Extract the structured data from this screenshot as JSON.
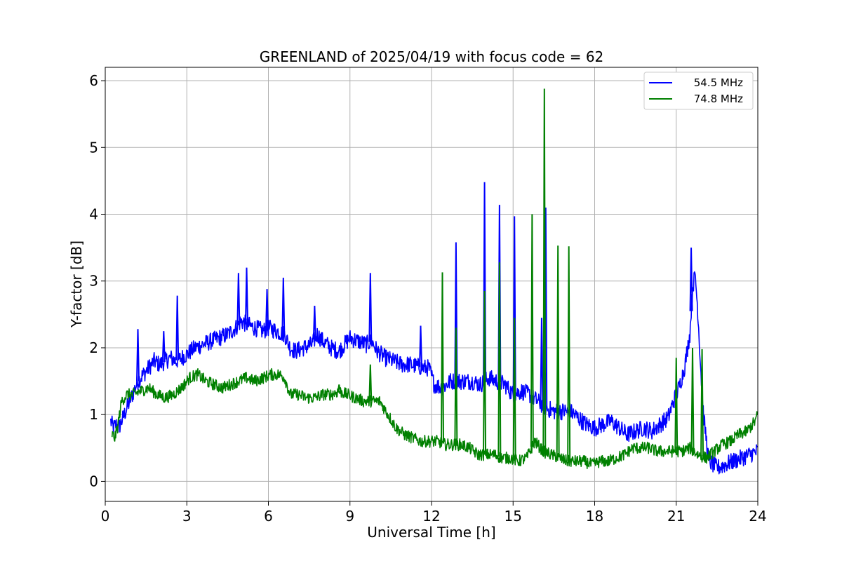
{
  "chart_data": {
    "type": "line",
    "title": "GREENLAND of 2025/04/19 with focus code = 62",
    "xlabel": "Universal Time [h]",
    "ylabel": "Y-factor [dB]",
    "xlim": [
      0,
      24
    ],
    "ylim": [
      -0.3,
      6.2
    ],
    "xticks": [
      0,
      3,
      6,
      9,
      12,
      15,
      18,
      21,
      24
    ],
    "xtick_labels": [
      "0",
      "3",
      "6",
      "9",
      "12",
      "15",
      "18",
      "21",
      "24"
    ],
    "yticks": [
      0,
      1,
      2,
      3,
      4,
      5,
      6
    ],
    "ytick_labels": [
      "0",
      "1",
      "2",
      "3",
      "4",
      "5",
      "6"
    ],
    "grid": true,
    "legend_position": "top-right",
    "series": [
      {
        "name": "54.5 MHz",
        "color": "#0000ff",
        "noise": 0.13,
        "x": [
          0.2,
          0.3,
          0.4,
          0.5,
          0.6,
          0.7,
          0.8,
          0.9,
          1.0,
          1.2,
          1.4,
          1.6,
          1.8,
          2.0,
          2.2,
          2.4,
          2.6,
          2.8,
          3.0,
          3.3,
          3.6,
          3.9,
          4.2,
          4.5,
          4.8,
          5.0,
          5.2,
          5.5,
          5.8,
          6.0,
          6.3,
          6.6,
          6.8,
          7.0,
          7.3,
          7.6,
          7.8,
          8.0,
          8.3,
          8.6,
          8.8,
          9.0,
          9.3,
          9.6,
          9.8,
          10.0,
          10.3,
          10.6,
          10.9,
          11.2,
          11.5,
          11.7,
          11.9,
          12.1,
          12.4,
          12.7,
          13.0,
          13.5,
          13.8,
          14.1,
          14.4,
          14.7,
          15.0,
          15.3,
          15.6,
          15.9,
          16.2,
          16.5,
          16.8,
          17.1,
          17.4,
          17.7,
          18.0,
          18.3,
          18.6,
          18.9,
          19.2,
          19.5,
          19.8,
          20.1,
          20.4,
          20.7,
          20.9,
          21.1,
          21.3,
          21.5,
          21.6,
          21.7,
          21.8,
          21.9,
          22.0,
          22.2,
          22.5,
          22.8,
          23.1,
          23.4,
          23.7,
          24.0
        ],
        "values": [
          0.9,
          0.8,
          0.85,
          0.8,
          0.9,
          1.0,
          1.1,
          1.2,
          1.3,
          1.5,
          1.6,
          1.7,
          1.8,
          1.75,
          1.8,
          1.85,
          1.8,
          1.85,
          1.9,
          2.0,
          2.05,
          2.1,
          2.15,
          2.2,
          2.3,
          2.4,
          2.35,
          2.3,
          2.25,
          2.3,
          2.25,
          2.2,
          2.0,
          1.95,
          2.0,
          2.05,
          2.2,
          2.1,
          2.0,
          1.95,
          2.05,
          2.15,
          2.1,
          2.05,
          2.1,
          1.95,
          1.85,
          1.8,
          1.75,
          1.75,
          1.72,
          1.7,
          1.7,
          1.45,
          1.4,
          1.5,
          1.5,
          1.5,
          1.45,
          1.55,
          1.5,
          1.45,
          1.3,
          1.35,
          1.3,
          1.2,
          1.1,
          1.05,
          1.05,
          1.05,
          0.95,
          0.85,
          0.8,
          0.85,
          0.9,
          0.8,
          0.7,
          0.75,
          0.8,
          0.75,
          0.85,
          0.95,
          1.2,
          1.4,
          1.7,
          2.2,
          2.9,
          3.1,
          2.5,
          1.7,
          1.0,
          0.3,
          0.2,
          0.25,
          0.3,
          0.35,
          0.4,
          0.45
        ],
        "spikes": [
          [
            1.2,
            2.28
          ],
          [
            2.15,
            2.25
          ],
          [
            2.65,
            2.78
          ],
          [
            4.9,
            3.12
          ],
          [
            5.2,
            3.2
          ],
          [
            5.95,
            2.88
          ],
          [
            6.55,
            3.05
          ],
          [
            7.7,
            2.63
          ],
          [
            9.75,
            3.12
          ],
          [
            11.6,
            2.33
          ],
          [
            12.9,
            3.58
          ],
          [
            13.95,
            4.48
          ],
          [
            14.5,
            4.14
          ],
          [
            15.05,
            3.97
          ],
          [
            16.05,
            2.45
          ],
          [
            16.2,
            4.1
          ],
          [
            21.55,
            3.5
          ]
        ]
      },
      {
        "name": "74.8 MHz",
        "color": "#008000",
        "noise": 0.09,
        "x": [
          0.25,
          0.35,
          0.45,
          0.6,
          0.8,
          1.0,
          1.3,
          1.6,
          1.9,
          2.2,
          2.5,
          2.8,
          3.1,
          3.4,
          3.7,
          4.0,
          4.3,
          4.6,
          4.9,
          5.2,
          5.5,
          5.8,
          6.1,
          6.4,
          6.6,
          6.8,
          7.1,
          7.4,
          7.7,
          8.0,
          8.3,
          8.6,
          8.9,
          9.2,
          9.5,
          9.8,
          10.1,
          10.4,
          10.7,
          11.0,
          11.3,
          11.6,
          11.9,
          12.2,
          12.5,
          12.8,
          13.1,
          13.4,
          13.7,
          14.0,
          14.3,
          14.6,
          14.9,
          15.2,
          15.5,
          15.8,
          16.1,
          16.4,
          16.7,
          17.0,
          17.3,
          17.6,
          17.9,
          18.2,
          18.5,
          18.8,
          19.1,
          19.4,
          19.7,
          20.0,
          20.3,
          20.6,
          20.9,
          21.2,
          21.5,
          21.8,
          22.1,
          22.4,
          22.7,
          23.0,
          23.3,
          23.6,
          23.9,
          24.0
        ],
        "values": [
          0.7,
          0.65,
          0.8,
          1.2,
          1.3,
          1.3,
          1.35,
          1.4,
          1.3,
          1.25,
          1.3,
          1.4,
          1.55,
          1.6,
          1.5,
          1.45,
          1.4,
          1.45,
          1.5,
          1.55,
          1.5,
          1.55,
          1.6,
          1.6,
          1.55,
          1.3,
          1.3,
          1.25,
          1.25,
          1.3,
          1.3,
          1.35,
          1.3,
          1.25,
          1.2,
          1.2,
          1.2,
          1.0,
          0.8,
          0.7,
          0.65,
          0.6,
          0.6,
          0.6,
          0.55,
          0.55,
          0.55,
          0.5,
          0.4,
          0.4,
          0.4,
          0.35,
          0.35,
          0.3,
          0.35,
          0.6,
          0.45,
          0.4,
          0.35,
          0.3,
          0.3,
          0.3,
          0.25,
          0.3,
          0.3,
          0.35,
          0.4,
          0.5,
          0.5,
          0.5,
          0.45,
          0.45,
          0.45,
          0.45,
          0.5,
          0.4,
          0.35,
          0.45,
          0.55,
          0.6,
          0.7,
          0.75,
          0.9,
          1.0
        ],
        "spikes": [
          [
            12.4,
            3.13
          ],
          [
            12.9,
            2.3
          ],
          [
            13.95,
            2.85
          ],
          [
            14.5,
            3.28
          ],
          [
            15.05,
            2.45
          ],
          [
            15.7,
            4.0
          ],
          [
            16.15,
            5.88
          ],
          [
            16.65,
            3.53
          ],
          [
            17.05,
            3.52
          ],
          [
            21.0,
            1.85
          ],
          [
            21.6,
            2.0
          ],
          [
            21.95,
            1.98
          ],
          [
            9.75,
            1.75
          ],
          [
            8.6,
            1.45
          ]
        ]
      }
    ]
  }
}
